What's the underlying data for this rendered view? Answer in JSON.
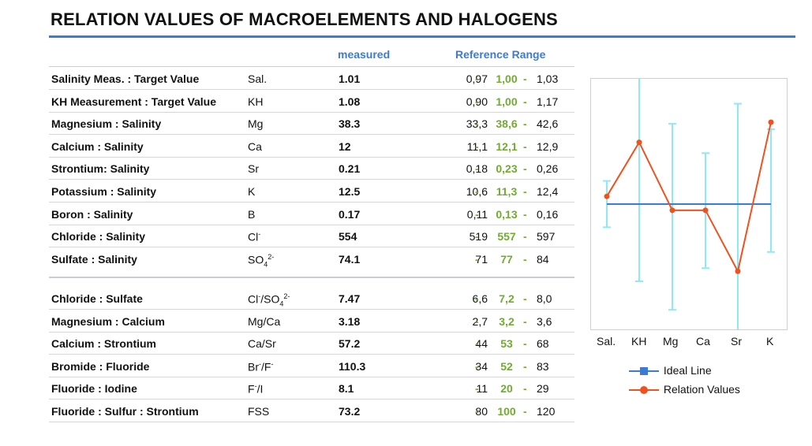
{
  "title": "RELATION VALUES OF MACROELEMENTS AND HALOGENS",
  "headers": {
    "measured": "measured",
    "reference": "Reference Range"
  },
  "rows_group1": [
    {
      "name": "Salinity Meas. : Target Value",
      "sym": "Sal.",
      "meas": "1.01",
      "lo": "0,97",
      "tgt": "1,00",
      "hi": "1,03"
    },
    {
      "name": "KH Measurement : Target Value",
      "sym": "KH",
      "meas": "1.08",
      "lo": "0,90",
      "tgt": "1,00",
      "hi": "1,17"
    },
    {
      "name": "Magnesium : Salinity",
      "sym": "Mg",
      "meas": "38.3",
      "lo": "33,3",
      "tgt": "38,6",
      "hi": "42,6"
    },
    {
      "name": "Calcium : Salinity",
      "sym": "Ca",
      "meas": "12",
      "lo": "11,1",
      "tgt": "12,1",
      "hi": "12,9"
    },
    {
      "name": "Strontium: Salinity",
      "sym": "Sr",
      "meas": "0.21",
      "lo": "0,18",
      "tgt": "0,23",
      "hi": "0,26"
    },
    {
      "name": "Potassium : Salinity",
      "sym": "K",
      "meas": "12.5",
      "lo": "10,6",
      "tgt": "11,3",
      "hi": "12,4"
    },
    {
      "name": "Boron : Salinity",
      "sym": "B",
      "meas": "0.17",
      "lo": "0,11",
      "tgt": "0,13",
      "hi": "0,16"
    },
    {
      "name": "Chloride : Salinity",
      "sym": "Cl",
      "meas": "554",
      "lo": "519",
      "tgt": "557",
      "hi": "597"
    },
    {
      "name": "Sulfate : Salinity",
      "sym": "SO",
      "meas": "74.1",
      "lo": "71",
      "tgt": "77",
      "hi": "84"
    }
  ],
  "rows_group2": [
    {
      "name": "Chloride : Sulfate",
      "sym": "Cl",
      "sym2": "/SO",
      "meas": "7.47",
      "lo": "6,6",
      "tgt": "7,2",
      "hi": "8,0"
    },
    {
      "name": "Magnesium : Calcium",
      "sym": "Mg/Ca",
      "meas": "3.18",
      "lo": "2,7",
      "tgt": "3,2",
      "hi": "3,6"
    },
    {
      "name": "Calcium : Strontium",
      "sym": "Ca/Sr",
      "meas": "57.2",
      "lo": "44",
      "tgt": "53",
      "hi": "68"
    },
    {
      "name": "Bromide : Fluoride",
      "sym": "Br",
      "sym2": "/F",
      "meas": "110.3",
      "lo": "34",
      "tgt": "52",
      "hi": "83"
    },
    {
      "name": "Fluoride : Iodine",
      "sym": "F",
      "sym2": "/I",
      "meas": "8.1",
      "lo": "11",
      "tgt": "20",
      "hi": "29"
    },
    {
      "name": "Fluoride : Sulfur : Strontium",
      "sym": "FSS",
      "meas": "73.2",
      "lo": "80",
      "tgt": "100",
      "hi": "120"
    }
  ],
  "chart_data": {
    "type": "line",
    "categories": [
      "Sal.",
      "KH",
      "Mg",
      "Ca",
      "Sr",
      "K"
    ],
    "series": [
      {
        "name": "Ideal Line",
        "values": [
          1,
          1,
          1,
          1,
          1,
          1
        ],
        "color": "#3a7bd5"
      },
      {
        "name": "Relation Values",
        "values": [
          1.01,
          1.08,
          0.992,
          0.992,
          0.913,
          1.106
        ],
        "color": "#f0511f"
      }
    ],
    "error_bars": {
      "low": [
        0.97,
        0.9,
        0.863,
        0.917,
        0.783,
        0.938
      ],
      "high": [
        1.03,
        1.17,
        1.104,
        1.066,
        1.13,
        1.097
      ],
      "color": "#8ee9f5"
    },
    "ylim": [
      0.85,
      1.15
    ]
  }
}
